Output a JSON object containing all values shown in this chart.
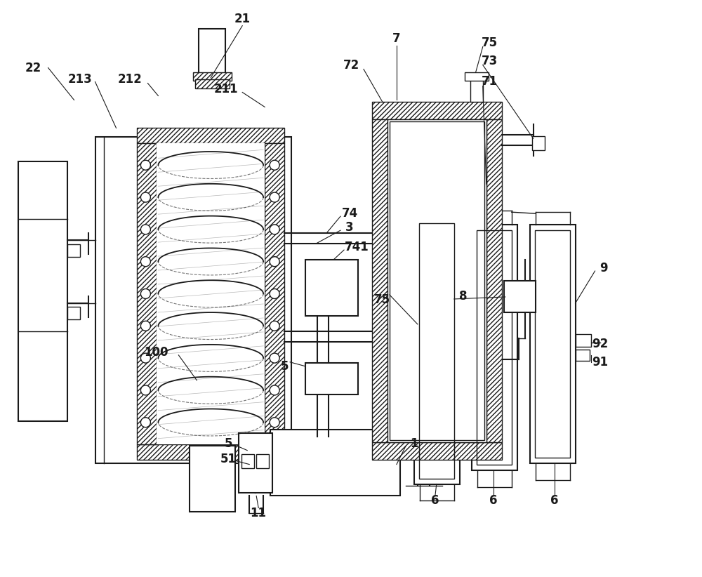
{
  "bg_color": "#ffffff",
  "line_color": "#1a1a1a",
  "label_color": "#000000",
  "label_fontsize": 12,
  "label_fontweight": "bold",
  "figsize": [
    10.0,
    8.22
  ],
  "dpi": 100
}
